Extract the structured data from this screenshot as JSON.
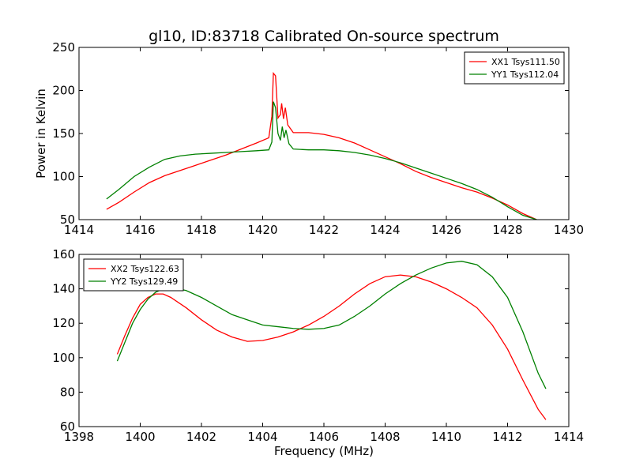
{
  "chart_data": [
    {
      "type": "line",
      "title": "gl10, ID:83718 Calibrated On-source spectrum",
      "xlabel": "",
      "ylabel": "Power in Kelvin",
      "xlim": [
        1414,
        1430
      ],
      "ylim": [
        50,
        250
      ],
      "xticks": [
        1414,
        1416,
        1418,
        1420,
        1422,
        1424,
        1426,
        1428,
        1430
      ],
      "yticks": [
        50,
        100,
        150,
        200,
        250
      ],
      "grid": false,
      "legend_position": "top-right",
      "series": [
        {
          "name": "XX1 Tsys111.50",
          "color": "#ff0000",
          "points": [
            [
              1414.9,
              62
            ],
            [
              1415.3,
              70
            ],
            [
              1415.8,
              82
            ],
            [
              1416.3,
              93
            ],
            [
              1416.8,
              101
            ],
            [
              1417.3,
              107
            ],
            [
              1417.8,
              113
            ],
            [
              1418.3,
              119
            ],
            [
              1418.8,
              125
            ],
            [
              1419.3,
              132
            ],
            [
              1419.8,
              139
            ],
            [
              1420.2,
              145
            ],
            [
              1420.3,
              170
            ],
            [
              1420.35,
              220
            ],
            [
              1420.42,
              217
            ],
            [
              1420.5,
              168
            ],
            [
              1420.58,
              172
            ],
            [
              1420.62,
              185
            ],
            [
              1420.68,
              167
            ],
            [
              1420.74,
              180
            ],
            [
              1420.82,
              160
            ],
            [
              1421.0,
              151
            ],
            [
              1421.5,
              151
            ],
            [
              1422.0,
              149
            ],
            [
              1422.5,
              145
            ],
            [
              1423.0,
              139
            ],
            [
              1423.5,
              131
            ],
            [
              1424.0,
              123
            ],
            [
              1424.5,
              115
            ],
            [
              1425.0,
              106
            ],
            [
              1425.5,
              99
            ],
            [
              1426.0,
              93
            ],
            [
              1426.5,
              87
            ],
            [
              1427.0,
              82
            ],
            [
              1427.5,
              75
            ],
            [
              1428.0,
              67
            ],
            [
              1428.5,
              57
            ],
            [
              1428.95,
              50
            ]
          ]
        },
        {
          "name": "YY1 Tsys112.04",
          "color": "#008000",
          "points": [
            [
              1414.9,
              74
            ],
            [
              1415.3,
              85
            ],
            [
              1415.8,
              100
            ],
            [
              1416.3,
              111
            ],
            [
              1416.8,
              120
            ],
            [
              1417.3,
              124
            ],
            [
              1417.8,
              126
            ],
            [
              1418.3,
              127
            ],
            [
              1418.8,
              128
            ],
            [
              1419.3,
              129
            ],
            [
              1419.8,
              130
            ],
            [
              1420.2,
              131
            ],
            [
              1420.3,
              140
            ],
            [
              1420.35,
              187
            ],
            [
              1420.42,
              180
            ],
            [
              1420.5,
              150
            ],
            [
              1420.58,
              142
            ],
            [
              1420.64,
              158
            ],
            [
              1420.7,
              145
            ],
            [
              1420.76,
              154
            ],
            [
              1420.86,
              138
            ],
            [
              1421.0,
              132
            ],
            [
              1421.5,
              131
            ],
            [
              1422.0,
              131
            ],
            [
              1422.5,
              130
            ],
            [
              1423.0,
              128
            ],
            [
              1423.5,
              125
            ],
            [
              1424.0,
              121
            ],
            [
              1424.5,
              116
            ],
            [
              1425.0,
              110
            ],
            [
              1425.5,
              104
            ],
            [
              1426.0,
              98
            ],
            [
              1426.5,
              92
            ],
            [
              1427.0,
              85
            ],
            [
              1427.5,
              76
            ],
            [
              1428.0,
              65
            ],
            [
              1428.5,
              55
            ],
            [
              1428.95,
              50
            ]
          ]
        }
      ]
    },
    {
      "type": "line",
      "title": "",
      "xlabel": "Frequency (MHz)",
      "ylabel": "",
      "xlim": [
        1398,
        1414
      ],
      "ylim": [
        60,
        160
      ],
      "xticks": [
        1398,
        1400,
        1402,
        1404,
        1406,
        1408,
        1410,
        1412,
        1414
      ],
      "yticks": [
        60,
        80,
        100,
        120,
        140,
        160
      ],
      "grid": false,
      "legend_position": "top-left",
      "series": [
        {
          "name": "XX2 Tsys122.63",
          "color": "#ff0000",
          "points": [
            [
              1399.25,
              102
            ],
            [
              1399.5,
              113
            ],
            [
              1399.75,
              123
            ],
            [
              1400.0,
              131
            ],
            [
              1400.25,
              135
            ],
            [
              1400.5,
              137
            ],
            [
              1400.75,
              137
            ],
            [
              1401.0,
              135
            ],
            [
              1401.5,
              129
            ],
            [
              1402.0,
              122
            ],
            [
              1402.5,
              116
            ],
            [
              1403.0,
              112
            ],
            [
              1403.5,
              109.5
            ],
            [
              1404.0,
              110
            ],
            [
              1404.5,
              112
            ],
            [
              1405.0,
              115
            ],
            [
              1405.5,
              119
            ],
            [
              1406.0,
              124
            ],
            [
              1406.5,
              130
            ],
            [
              1407.0,
              137
            ],
            [
              1407.5,
              143
            ],
            [
              1408.0,
              147
            ],
            [
              1408.5,
              148
            ],
            [
              1409.0,
              147
            ],
            [
              1409.5,
              144
            ],
            [
              1410.0,
              140
            ],
            [
              1410.5,
              135
            ],
            [
              1411.0,
              129
            ],
            [
              1411.5,
              119
            ],
            [
              1412.0,
              105
            ],
            [
              1412.5,
              87
            ],
            [
              1413.0,
              70
            ],
            [
              1413.25,
              64
            ]
          ]
        },
        {
          "name": "YY2 Tsys129.49",
          "color": "#008000",
          "points": [
            [
              1399.25,
              98
            ],
            [
              1399.5,
              109
            ],
            [
              1399.75,
              120
            ],
            [
              1400.0,
              128
            ],
            [
              1400.25,
              134
            ],
            [
              1400.5,
              138
            ],
            [
              1400.75,
              140
            ],
            [
              1401.0,
              141
            ],
            [
              1401.5,
              139
            ],
            [
              1402.0,
              135
            ],
            [
              1402.5,
              130
            ],
            [
              1403.0,
              125
            ],
            [
              1403.5,
              122
            ],
            [
              1404.0,
              119
            ],
            [
              1404.5,
              118
            ],
            [
              1405.0,
              117
            ],
            [
              1405.5,
              116.5
            ],
            [
              1406.0,
              117
            ],
            [
              1406.5,
              119
            ],
            [
              1407.0,
              124
            ],
            [
              1407.5,
              130
            ],
            [
              1408.0,
              137
            ],
            [
              1408.5,
              143
            ],
            [
              1409.0,
              148
            ],
            [
              1409.5,
              152
            ],
            [
              1410.0,
              155
            ],
            [
              1410.5,
              156
            ],
            [
              1411.0,
              154
            ],
            [
              1411.5,
              147
            ],
            [
              1412.0,
              135
            ],
            [
              1412.5,
              115
            ],
            [
              1413.0,
              91
            ],
            [
              1413.25,
              82
            ]
          ]
        }
      ]
    }
  ]
}
